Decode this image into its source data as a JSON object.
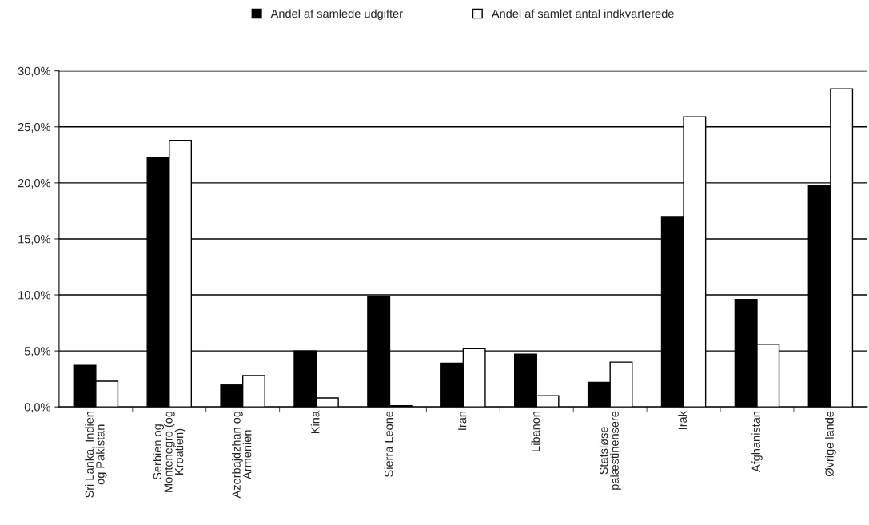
{
  "chart_data": {
    "type": "bar",
    "categories": [
      "Sri Lanka, Indien\nog Pakistan",
      "Serbien og\nMontenegro (og\nKroatien)",
      "Azerbajdzhan og\nArmenien",
      "Kina",
      "Sierra Leone",
      "Iran",
      "Libanon",
      "Statsløse\npalæstinensere",
      "Irak",
      "Afghanistan",
      "Øvrige lande"
    ],
    "series": [
      {
        "name": "Andel af samlede udgifter",
        "color": "#000000",
        "values": [
          3.7,
          22.3,
          2.0,
          5.0,
          9.8,
          3.9,
          4.7,
          2.2,
          17.0,
          9.6,
          19.8
        ]
      },
      {
        "name": "Andel af samlet antal indkvarterede",
        "color": "#ffffff",
        "values": [
          2.3,
          23.8,
          2.8,
          0.8,
          0.1,
          5.2,
          1.0,
          4.0,
          25.9,
          5.6,
          28.4
        ]
      }
    ],
    "ylim": [
      0,
      30
    ],
    "yticks": [
      {
        "value": 0,
        "label": "0,0%"
      },
      {
        "value": 5,
        "label": "5,0%"
      },
      {
        "value": 10,
        "label": "10,0%"
      },
      {
        "value": 15,
        "label": "15,0%"
      },
      {
        "value": 20,
        "label": "20,0%"
      },
      {
        "value": 25,
        "label": "25,0%"
      },
      {
        "value": 30,
        "label": "30,0%"
      }
    ],
    "grid": "y",
    "legend": "top"
  }
}
